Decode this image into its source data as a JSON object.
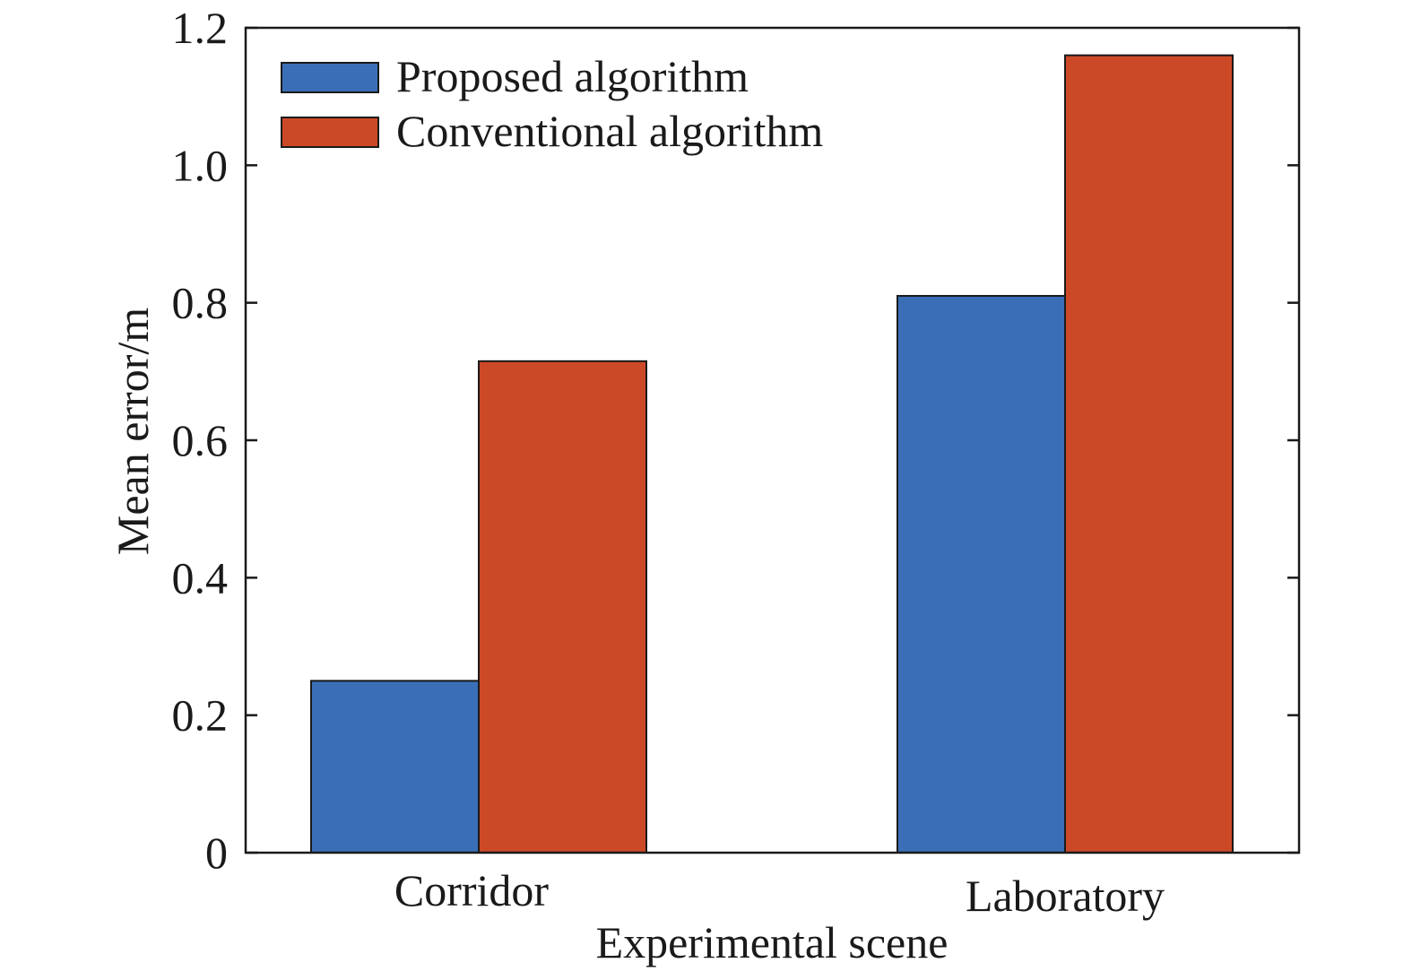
{
  "chart_data": {
    "type": "bar",
    "categories": [
      "Corridor",
      "Laboratory"
    ],
    "series": [
      {
        "name": "Proposed algorithm",
        "values": [
          0.25,
          0.81
        ],
        "color": "#3a6fb7"
      },
      {
        "name": "Conventional algorithm",
        "values": [
          0.715,
          1.16
        ],
        "color": "#cc4927"
      }
    ],
    "xlabel": "Experimental scene",
    "ylabel": "Mean error/m",
    "ylim": [
      0,
      1.2
    ],
    "yticks": [
      "0",
      "0.2",
      "0.4",
      "0.6",
      "0.8",
      "1.0",
      "1.2"
    ],
    "legend_position": "top-left",
    "grid": false
  }
}
